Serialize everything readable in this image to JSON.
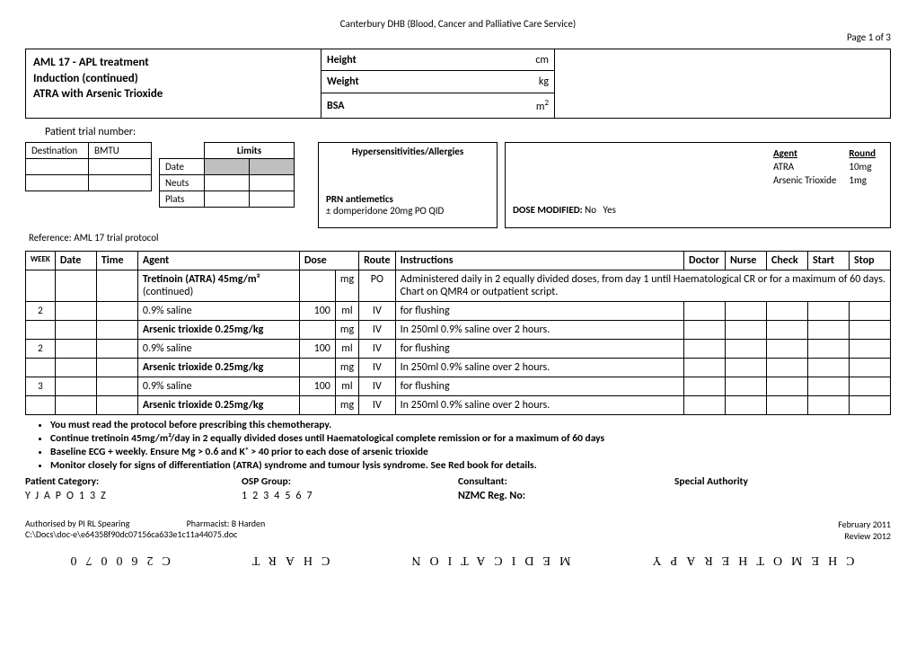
{
  "header": {
    "org": "Canterbury DHB (Blood, Cancer and Palliative Care Service)",
    "page": "Page 1 of 3"
  },
  "title": {
    "line1": "AML 17 - APL treatment",
    "line2": "Induction (continued)",
    "line3": "ATRA with Arsenic Trioxide"
  },
  "measures": {
    "height_label": "Height",
    "height_unit": "cm",
    "weight_label": "Weight",
    "weight_unit": "kg",
    "bsa_label": "BSA",
    "bsa_unit": "m²"
  },
  "trial_label": "Patient trial number:",
  "dest": {
    "destination": "Destination",
    "bmtu": "BMTU"
  },
  "limits": {
    "hdr": "Limits",
    "date": "Date",
    "neuts": "Neuts",
    "plats": "Plats"
  },
  "reference": "Reference: AML 17 trial protocol",
  "allergy": {
    "hdr": "Hypersensitivities/Allergies",
    "prn": "PRN antiemetics",
    "domp": "± domperidone 20mg PO QID"
  },
  "agent_box": {
    "agent_hdr": "Agent",
    "round_hdr": "Round",
    "a1": "ATRA",
    "r1": "10mg",
    "a2": "Arsenic Trioxide",
    "r2": "1mg",
    "dose_mod": "DOSE MODIFIED:",
    "no": "No",
    "yes": "Yes"
  },
  "main_headers": {
    "week": "WEEK",
    "date": "Date",
    "time": "Time",
    "agent": "Agent",
    "dose": "Dose",
    "route": "Route",
    "instructions": "Instructions",
    "doctor": "Doctor",
    "nurse": "Nurse",
    "check": "Check",
    "start": "Start",
    "stop": "Stop"
  },
  "rows": [
    {
      "wk": "",
      "agent": "Tretinoin (ATRA) 45mg/m²",
      "agent2": "(continued)",
      "dose": "",
      "unit": "mg",
      "route": "PO",
      "instr": "Administered daily in 2 equally divided doses, from day 1 until Haematological CR or for a maximum of 60 days.  Chart on QMR4 or outpatient script.",
      "bold": true
    },
    {
      "wk": "2",
      "agent": "0.9% saline",
      "dose": "100",
      "unit": "ml",
      "route": "IV",
      "instr": "for flushing",
      "bold": false
    },
    {
      "wk": "",
      "agent": "Arsenic trioxide 0.25mg/kg",
      "dose": "",
      "unit": "mg",
      "route": "IV",
      "instr": "In 250ml 0.9% saline over 2 hours.",
      "bold": true
    },
    {
      "wk": "2",
      "agent": "0.9% saline",
      "dose": "100",
      "unit": "ml",
      "route": "IV",
      "instr": "for flushing",
      "bold": false
    },
    {
      "wk": "",
      "agent": "Arsenic trioxide 0.25mg/kg",
      "dose": "",
      "unit": "mg",
      "route": "IV",
      "instr": "In 250ml 0.9% saline over 2 hours.",
      "bold": true
    },
    {
      "wk": "3",
      "agent": "0.9% saline",
      "dose": "100",
      "unit": "ml",
      "route": "IV",
      "instr": "for flushing",
      "bold": false
    },
    {
      "wk": "",
      "agent": "Arsenic trioxide 0.25mg/kg",
      "dose": "",
      "unit": "mg",
      "route": "IV",
      "instr": "In 250ml 0.9% saline over 2 hours.",
      "bold": true
    }
  ],
  "notes": [
    "You must read the protocol before prescribing this chemotherapy.",
    "Continue tretinoin 45mg/m²/day in 2 equally divided doses until Haematological complete remission or for a maximum of 60 days",
    "Baseline ECG + weekly.  Ensure Mg > 0.6 and K⁺ > 40 prior to each dose of arsenic trioxide",
    "Monitor closely for signs of differentiation (ATRA) syndrome and tumour lysis syndrome.  See Red book for details."
  ],
  "cat": {
    "patient": "Patient Category:",
    "osp": "OSP Group:",
    "consultant": "Consultant:",
    "auth": "Special Authority"
  },
  "cat2": {
    "c1": "YJAPO13Z",
    "c2": "1234567",
    "c3": "NZMC Reg. No:",
    "c4": ""
  },
  "footer": {
    "auth": "Authorised by PI RL Spearing",
    "pharm": "Pharmacist:  B Harden",
    "path": "C:\\Docs\\doc-e\\e64358f90dc07156ca633e1c11a44075.doc",
    "date": "February 2011",
    "review": "Review 2012"
  },
  "bottom": {
    "w1": "C260070",
    "w2": "CHART",
    "w3": "MEDICATION",
    "w4": "CHEMOTHERAPY"
  }
}
